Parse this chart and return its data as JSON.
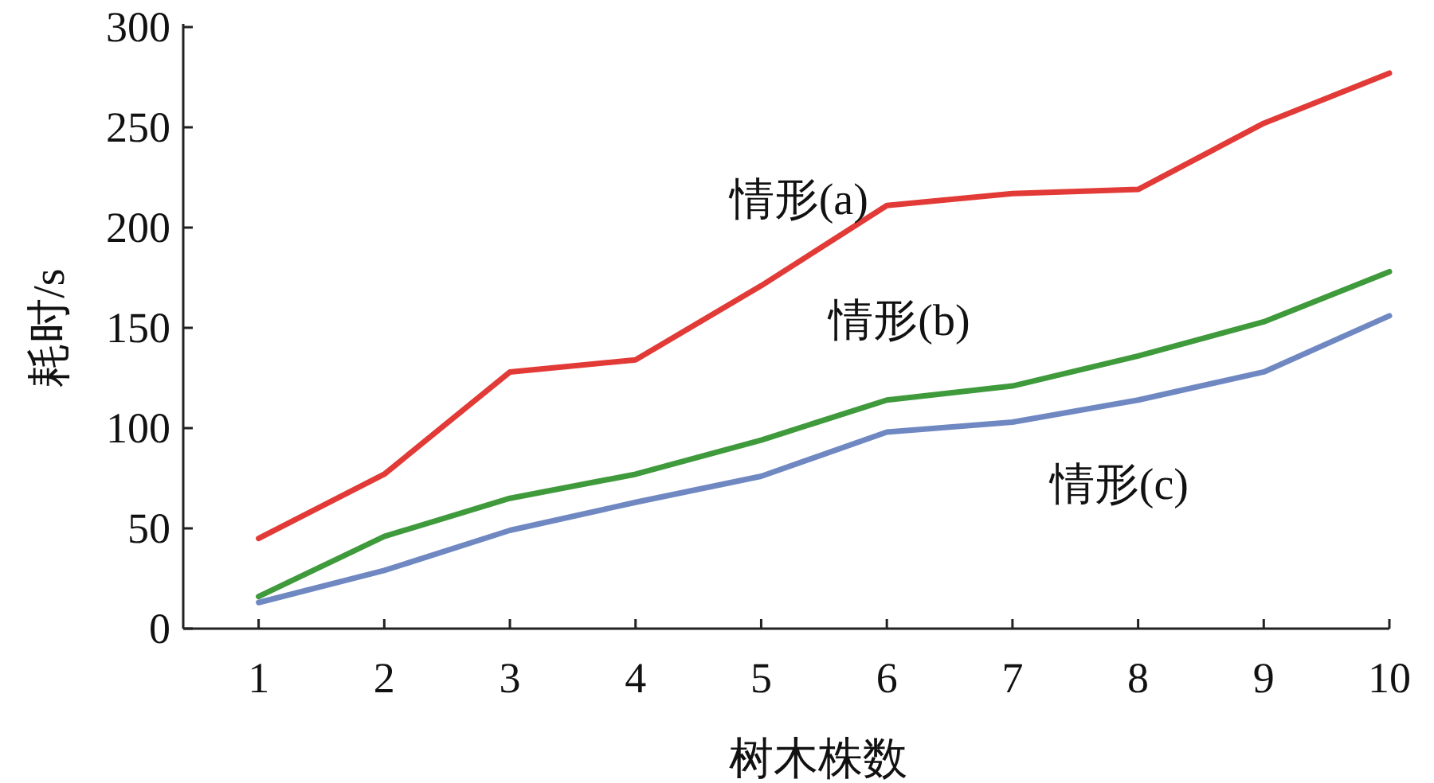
{
  "chart_data": {
    "type": "line",
    "xlabel": "树木株数",
    "ylabel": "耗时/s",
    "x": [
      1,
      2,
      3,
      4,
      5,
      6,
      7,
      8,
      9,
      10
    ],
    "xlim": [
      0.4,
      10
    ],
    "xticks": [
      1,
      2,
      3,
      4,
      5,
      6,
      7,
      8,
      9,
      10
    ],
    "ylim": [
      0,
      300
    ],
    "yticks": [
      0,
      50,
      100,
      150,
      200,
      250,
      300
    ],
    "grid": false,
    "legend": false,
    "marker": "none",
    "line_style": "solid",
    "series": [
      {
        "name": "情形(a)",
        "color": "#e23a36",
        "values": [
          45,
          77,
          128,
          134,
          171,
          211,
          217,
          219,
          252,
          277
        ]
      },
      {
        "name": "情形(b)",
        "color": "#3f9a3c",
        "values": [
          16,
          46,
          65,
          77,
          94,
          114,
          121,
          136,
          153,
          178
        ]
      },
      {
        "name": "情形(c)",
        "color": "#6f88c2",
        "values": [
          13,
          29,
          49,
          63,
          76,
          98,
          103,
          114,
          128,
          156
        ]
      }
    ]
  }
}
